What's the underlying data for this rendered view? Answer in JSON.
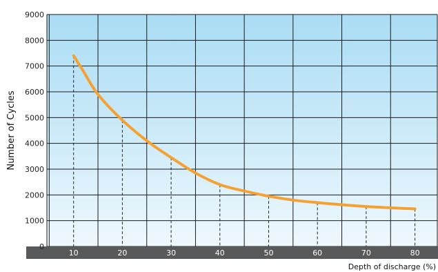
{
  "chart_data": {
    "type": "line",
    "title": "",
    "xlabel": "Depth of discharge (%)",
    "ylabel": "Number of Cycles",
    "xlim": [
      0,
      85
    ],
    "ylim": [
      0,
      9000
    ],
    "x_ticks": [
      10,
      20,
      30,
      40,
      50,
      60,
      70,
      80
    ],
    "y_ticks": [
      0,
      1000,
      2000,
      3000,
      4000,
      5000,
      6000,
      7000,
      8000,
      9000
    ],
    "x_grid": [
      5,
      15,
      25,
      35,
      45,
      55,
      65,
      75,
      85
    ],
    "grid": true,
    "legend": "none",
    "series": [
      {
        "name": "",
        "color": "#f5a033",
        "x": [
          10,
          12,
          15,
          20,
          25,
          30,
          35,
          40,
          45,
          50,
          55,
          60,
          65,
          70,
          75,
          80
        ],
        "y": [
          7400,
          6800,
          5900,
          4900,
          4100,
          3450,
          2850,
          2400,
          2150,
          1950,
          1800,
          1700,
          1620,
          1550,
          1500,
          1460
        ]
      }
    ],
    "drop_lines_at": [
      10,
      20,
      30,
      40,
      50,
      60,
      70,
      80
    ]
  }
}
